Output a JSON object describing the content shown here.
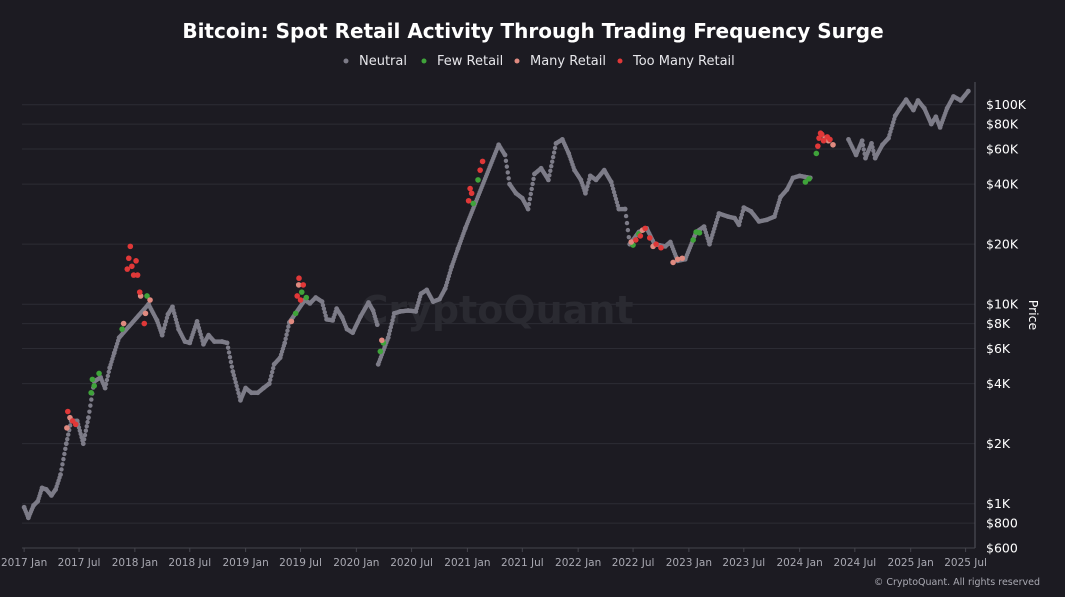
{
  "chart_data": {
    "type": "scatter",
    "title": "Bitcoin: Spot Retail Activity Through Trading Frequency Surge",
    "ylabel": "Price",
    "y_scale": "log",
    "ylim": [
      600,
      130000
    ],
    "xlim": [
      "2016-12-25",
      "2025-08-01"
    ],
    "y_ticks": [
      {
        "value": 600,
        "label": "$600"
      },
      {
        "value": 800,
        "label": "$800"
      },
      {
        "value": 1000,
        "label": "$1K"
      },
      {
        "value": 2000,
        "label": "$2K"
      },
      {
        "value": 4000,
        "label": "$4K"
      },
      {
        "value": 6000,
        "label": "$6K"
      },
      {
        "value": 8000,
        "label": "$8K"
      },
      {
        "value": 10000,
        "label": "$10K"
      },
      {
        "value": 20000,
        "label": "$20K"
      },
      {
        "value": 40000,
        "label": "$40K"
      },
      {
        "value": 60000,
        "label": "$60K"
      },
      {
        "value": 80000,
        "label": "$80K"
      },
      {
        "value": 100000,
        "label": "$100K"
      }
    ],
    "x_ticks": [
      {
        "date": "2017-01-01",
        "label": "2017 Jan"
      },
      {
        "date": "2017-07-01",
        "label": "2017 Jul"
      },
      {
        "date": "2018-01-01",
        "label": "2018 Jan"
      },
      {
        "date": "2018-07-01",
        "label": "2018 Jul"
      },
      {
        "date": "2019-01-01",
        "label": "2019 Jan"
      },
      {
        "date": "2019-07-01",
        "label": "2019 Jul"
      },
      {
        "date": "2020-01-01",
        "label": "2020 Jan"
      },
      {
        "date": "2020-07-01",
        "label": "2020 Jul"
      },
      {
        "date": "2021-01-01",
        "label": "2021 Jan"
      },
      {
        "date": "2021-07-01",
        "label": "2021 Jul"
      },
      {
        "date": "2022-01-01",
        "label": "2022 Jan"
      },
      {
        "date": "2022-07-01",
        "label": "2022 Jul"
      },
      {
        "date": "2023-01-01",
        "label": "2023 Jan"
      },
      {
        "date": "2023-07-01",
        "label": "2023 Jul"
      },
      {
        "date": "2024-01-01",
        "label": "2024 Jan"
      },
      {
        "date": "2024-07-01",
        "label": "2024 Jul"
      },
      {
        "date": "2025-01-01",
        "label": "2025 Jan"
      },
      {
        "date": "2025-07-01",
        "label": "2025 Jul"
      }
    ],
    "grid": true,
    "legend_position": "top-center",
    "series": [
      {
        "name": "Neutral",
        "color": "#7d7c88",
        "points": [
          [
            "2017-01-01",
            960
          ],
          [
            "2017-01-15",
            850
          ],
          [
            "2017-02-01",
            980
          ],
          [
            "2017-02-15",
            1030
          ],
          [
            "2017-03-01",
            1200
          ],
          [
            "2017-03-15",
            1180
          ],
          [
            "2017-04-01",
            1100
          ],
          [
            "2017-04-15",
            1180
          ],
          [
            "2017-05-01",
            1400
          ],
          [
            "2017-05-20",
            2000
          ],
          [
            "2017-06-05",
            2600
          ],
          [
            "2017-06-25",
            2600
          ],
          [
            "2017-07-15",
            2000
          ],
          [
            "2017-08-01",
            2700
          ],
          [
            "2017-08-20",
            4100
          ],
          [
            "2017-09-10",
            4300
          ],
          [
            "2017-09-25",
            3800
          ],
          [
            "2017-10-10",
            4800
          ],
          [
            "2017-10-25",
            5700
          ],
          [
            "2017-11-10",
            6800
          ],
          [
            "2018-02-15",
            10000
          ],
          [
            "2018-03-15",
            8300
          ],
          [
            "2018-04-01",
            7000
          ],
          [
            "2018-04-20",
            8900
          ],
          [
            "2018-05-05",
            9700
          ],
          [
            "2018-05-25",
            7500
          ],
          [
            "2018-06-15",
            6500
          ],
          [
            "2018-07-01",
            6400
          ],
          [
            "2018-07-25",
            8200
          ],
          [
            "2018-08-15",
            6300
          ],
          [
            "2018-09-01",
            7000
          ],
          [
            "2018-09-20",
            6500
          ],
          [
            "2018-10-15",
            6500
          ],
          [
            "2018-11-01",
            6400
          ],
          [
            "2018-11-20",
            4600
          ],
          [
            "2018-12-15",
            3300
          ],
          [
            "2019-01-01",
            3800
          ],
          [
            "2019-01-20",
            3600
          ],
          [
            "2019-02-10",
            3600
          ],
          [
            "2019-03-01",
            3800
          ],
          [
            "2019-03-20",
            4000
          ],
          [
            "2019-04-05",
            5000
          ],
          [
            "2019-04-25",
            5400
          ],
          [
            "2019-05-10",
            6400
          ],
          [
            "2019-05-25",
            8100
          ],
          [
            "2019-07-15",
            10500
          ],
          [
            "2019-08-01",
            10100
          ],
          [
            "2019-08-20",
            10800
          ],
          [
            "2019-09-10",
            10300
          ],
          [
            "2019-09-25",
            8400
          ],
          [
            "2019-10-15",
            8300
          ],
          [
            "2019-10-28",
            9500
          ],
          [
            "2019-11-15",
            8600
          ],
          [
            "2019-12-01",
            7500
          ],
          [
            "2019-12-20",
            7200
          ],
          [
            "2020-01-15",
            8700
          ],
          [
            "2020-02-10",
            10200
          ],
          [
            "2020-02-25",
            9300
          ],
          [
            "2020-03-10",
            7900
          ],
          [
            "2020-03-13",
            5000
          ],
          [
            "2020-04-15",
            6800
          ],
          [
            "2020-05-05",
            9000
          ],
          [
            "2020-05-25",
            9200
          ],
          [
            "2020-06-20",
            9300
          ],
          [
            "2020-07-15",
            9200
          ],
          [
            "2020-08-01",
            11300
          ],
          [
            "2020-08-20",
            11800
          ],
          [
            "2020-09-10",
            10300
          ],
          [
            "2020-10-01",
            10600
          ],
          [
            "2020-10-20",
            12000
          ],
          [
            "2020-11-10",
            15400
          ],
          [
            "2020-12-01",
            19000
          ],
          [
            "2020-12-25",
            24000
          ],
          [
            "2021-04-14",
            63000
          ],
          [
            "2021-05-05",
            56000
          ],
          [
            "2021-05-20",
            40000
          ],
          [
            "2021-06-10",
            36000
          ],
          [
            "2021-07-01",
            34000
          ],
          [
            "2021-07-20",
            30000
          ],
          [
            "2021-08-10",
            45000
          ],
          [
            "2021-09-01",
            48000
          ],
          [
            "2021-09-25",
            42000
          ],
          [
            "2021-10-20",
            64000
          ],
          [
            "2021-11-10",
            67000
          ],
          [
            "2021-12-01",
            57000
          ],
          [
            "2021-12-20",
            47000
          ],
          [
            "2022-01-10",
            42000
          ],
          [
            "2022-01-25",
            36000
          ],
          [
            "2022-02-10",
            44000
          ],
          [
            "2022-03-01",
            42000
          ],
          [
            "2022-03-28",
            47000
          ],
          [
            "2022-04-20",
            41000
          ],
          [
            "2022-05-15",
            30000
          ],
          [
            "2022-06-05",
            30000
          ],
          [
            "2022-06-20",
            20000
          ],
          [
            "2022-07-20",
            23000
          ],
          [
            "2022-08-15",
            24000
          ],
          [
            "2022-09-10",
            20000
          ],
          [
            "2022-10-15",
            19500
          ],
          [
            "2022-11-01",
            20500
          ],
          [
            "2022-11-25",
            16500
          ],
          [
            "2022-12-20",
            16800
          ],
          [
            "2023-01-25",
            23000
          ],
          [
            "2023-02-20",
            24500
          ],
          [
            "2023-03-10",
            20000
          ],
          [
            "2023-04-10",
            28500
          ],
          [
            "2023-05-10",
            27500
          ],
          [
            "2023-06-01",
            27000
          ],
          [
            "2023-06-15",
            25000
          ],
          [
            "2023-07-01",
            30500
          ],
          [
            "2023-07-25",
            29200
          ],
          [
            "2023-08-20",
            26000
          ],
          [
            "2023-09-15",
            26500
          ],
          [
            "2023-10-10",
            27500
          ],
          [
            "2023-10-30",
            34500
          ],
          [
            "2023-11-20",
            37500
          ],
          [
            "2023-12-10",
            43000
          ],
          [
            "2024-01-01",
            44000
          ],
          [
            "2024-02-05",
            43000
          ],
          [
            "2024-06-10",
            67000
          ],
          [
            "2024-07-05",
            56000
          ],
          [
            "2024-07-25",
            66000
          ],
          [
            "2024-08-05",
            54000
          ],
          [
            "2024-08-25",
            64000
          ],
          [
            "2024-09-06",
            54000
          ],
          [
            "2024-09-30",
            63000
          ],
          [
            "2024-10-20",
            68000
          ],
          [
            "2024-11-11",
            88000
          ],
          [
            "2024-11-25",
            95000
          ],
          [
            "2024-12-17",
            106000
          ],
          [
            "2025-01-10",
            94000
          ],
          [
            "2025-01-25",
            105000
          ],
          [
            "2025-02-15",
            96000
          ],
          [
            "2025-03-10",
            80000
          ],
          [
            "2025-03-25",
            87000
          ],
          [
            "2025-04-08",
            77000
          ],
          [
            "2025-05-01",
            96000
          ],
          [
            "2025-05-22",
            110000
          ],
          [
            "2025-06-15",
            105000
          ],
          [
            "2025-07-10",
            117000
          ]
        ]
      },
      {
        "name": "Few Retail",
        "color": "#3fa33a",
        "points": [
          [
            "2017-08-10",
            3600
          ],
          [
            "2017-08-14",
            4200
          ],
          [
            "2017-08-20",
            3900
          ],
          [
            "2017-09-05",
            4500
          ],
          [
            "2017-11-20",
            7500
          ],
          [
            "2018-02-10",
            11000
          ],
          [
            "2019-06-15",
            9000
          ],
          [
            "2019-07-05",
            11500
          ],
          [
            "2019-07-20",
            10800
          ],
          [
            "2020-03-20",
            5800
          ],
          [
            "2020-03-30",
            6400
          ],
          [
            "2021-01-20",
            32000
          ],
          [
            "2021-02-05",
            42000
          ],
          [
            "2022-07-01",
            19800
          ],
          [
            "2022-07-20",
            22500
          ],
          [
            "2023-01-15",
            21000
          ],
          [
            "2023-01-25",
            23000
          ],
          [
            "2023-02-05",
            22800
          ],
          [
            "2024-01-20",
            41000
          ],
          [
            "2024-02-01",
            42500
          ],
          [
            "2024-02-25",
            57000
          ]
        ]
      },
      {
        "name": "Many Retail",
        "color": "#e08a80",
        "points": [
          [
            "2017-05-22",
            2400
          ],
          [
            "2017-06-01",
            2700
          ],
          [
            "2017-11-25",
            8000
          ],
          [
            "2018-01-20",
            11000
          ],
          [
            "2018-02-05",
            9000
          ],
          [
            "2018-02-20",
            10500
          ],
          [
            "2019-06-01",
            8200
          ],
          [
            "2019-06-25",
            12500
          ],
          [
            "2020-03-25",
            6600
          ],
          [
            "2022-06-25",
            20500
          ],
          [
            "2022-08-01",
            23500
          ],
          [
            "2022-09-05",
            19500
          ],
          [
            "2022-11-10",
            16200
          ],
          [
            "2022-11-25",
            16800
          ],
          [
            "2022-12-10",
            17000
          ],
          [
            "2024-03-25",
            68000
          ],
          [
            "2024-04-05",
            66000
          ],
          [
            "2024-04-20",
            63000
          ]
        ]
      },
      {
        "name": "Too Many Retail",
        "color": "#e03838",
        "points": [
          [
            "2017-05-25",
            2900
          ],
          [
            "2017-06-10",
            2600
          ],
          [
            "2017-06-20",
            2500
          ],
          [
            "2017-12-07",
            15000
          ],
          [
            "2017-12-12",
            17000
          ],
          [
            "2017-12-17",
            19500
          ],
          [
            "2017-12-22",
            15500
          ],
          [
            "2017-12-28",
            14000
          ],
          [
            "2018-01-05",
            16500
          ],
          [
            "2018-01-10",
            14000
          ],
          [
            "2018-01-17",
            11500
          ],
          [
            "2018-02-01",
            8000
          ],
          [
            "2019-06-20",
            11000
          ],
          [
            "2019-06-26",
            13500
          ],
          [
            "2019-07-01",
            10500
          ],
          [
            "2019-07-10",
            12500
          ],
          [
            "2021-01-05",
            33000
          ],
          [
            "2021-01-10",
            38000
          ],
          [
            "2021-01-15",
            36000
          ],
          [
            "2021-02-12",
            47000
          ],
          [
            "2021-02-20",
            52000
          ],
          [
            "2022-07-10",
            21000
          ],
          [
            "2022-07-25",
            22000
          ],
          [
            "2022-08-10",
            24000
          ],
          [
            "2022-08-25",
            21500
          ],
          [
            "2022-09-15",
            20000
          ],
          [
            "2022-10-01",
            19200
          ],
          [
            "2024-03-01",
            62000
          ],
          [
            "2024-03-05",
            68000
          ],
          [
            "2024-03-10",
            72000
          ],
          [
            "2024-03-14",
            71000
          ],
          [
            "2024-03-20",
            66000
          ],
          [
            "2024-04-01",
            69000
          ],
          [
            "2024-04-10",
            67000
          ]
        ]
      }
    ]
  },
  "page": {
    "watermark": "CryptoQuant",
    "copyright": "© CryptoQuant. All rights reserved"
  }
}
